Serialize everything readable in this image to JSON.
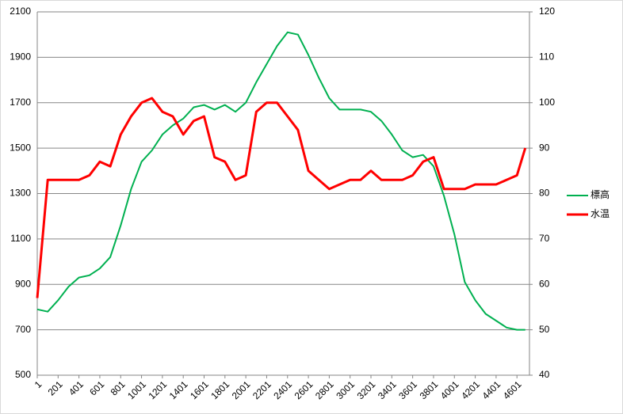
{
  "chart_data": {
    "type": "line",
    "x": [
      1,
      101,
      201,
      301,
      401,
      501,
      601,
      701,
      801,
      901,
      1001,
      1101,
      1201,
      1301,
      1401,
      1501,
      1601,
      1701,
      1801,
      1901,
      2001,
      2101,
      2201,
      2301,
      2401,
      2501,
      2601,
      2701,
      2801,
      2901,
      3001,
      3101,
      3201,
      3301,
      3401,
      3501,
      3601,
      3701,
      3801,
      3901,
      4001,
      4101,
      4201,
      4301,
      4401,
      4501,
      4601,
      4681
    ],
    "xlim": [
      1,
      4721
    ],
    "xticks": [
      1,
      201,
      401,
      601,
      801,
      1001,
      1201,
      1401,
      1601,
      1801,
      2001,
      2201,
      2401,
      2601,
      2801,
      3001,
      3201,
      3401,
      3601,
      3801,
      4001,
      4201,
      4401,
      4601
    ],
    "ylim": [
      500,
      2100
    ],
    "yticks": [
      500,
      700,
      900,
      1100,
      1300,
      1500,
      1700,
      1900,
      2100
    ],
    "y2lim": [
      40,
      120
    ],
    "y2ticks": [
      40,
      50,
      60,
      70,
      80,
      90,
      100,
      110,
      120
    ],
    "grid": true,
    "legend": "right",
    "series": [
      {
        "name": "標高",
        "color": "#00b050",
        "values": [
          790,
          780,
          830,
          890,
          930,
          940,
          970,
          1020,
          1160,
          1320,
          1440,
          1490,
          1560,
          1600,
          1630,
          1680,
          1690,
          1670,
          1690,
          1660,
          1700,
          1790,
          1870,
          1950,
          2010,
          2000,
          1910,
          1810,
          1720,
          1670,
          1670,
          1670,
          1660,
          1620,
          1560,
          1490,
          1460,
          1470,
          1420,
          1290,
          1120,
          910,
          830,
          770,
          740,
          710,
          700,
          700
        ]
      },
      {
        "name": "水温",
        "color": "#ff0000",
        "axis": "y2",
        "values": [
          57,
          83,
          83,
          83,
          83,
          84,
          87,
          86,
          93,
          97,
          100,
          101,
          98,
          97,
          93,
          96,
          97,
          88,
          87,
          83,
          84,
          98,
          100,
          100,
          97,
          94,
          85,
          83,
          81,
          82,
          83,
          83,
          85,
          83,
          83,
          83,
          84,
          87,
          88,
          81,
          81,
          81,
          82,
          82,
          82,
          83,
          84,
          90
        ]
      }
    ]
  }
}
